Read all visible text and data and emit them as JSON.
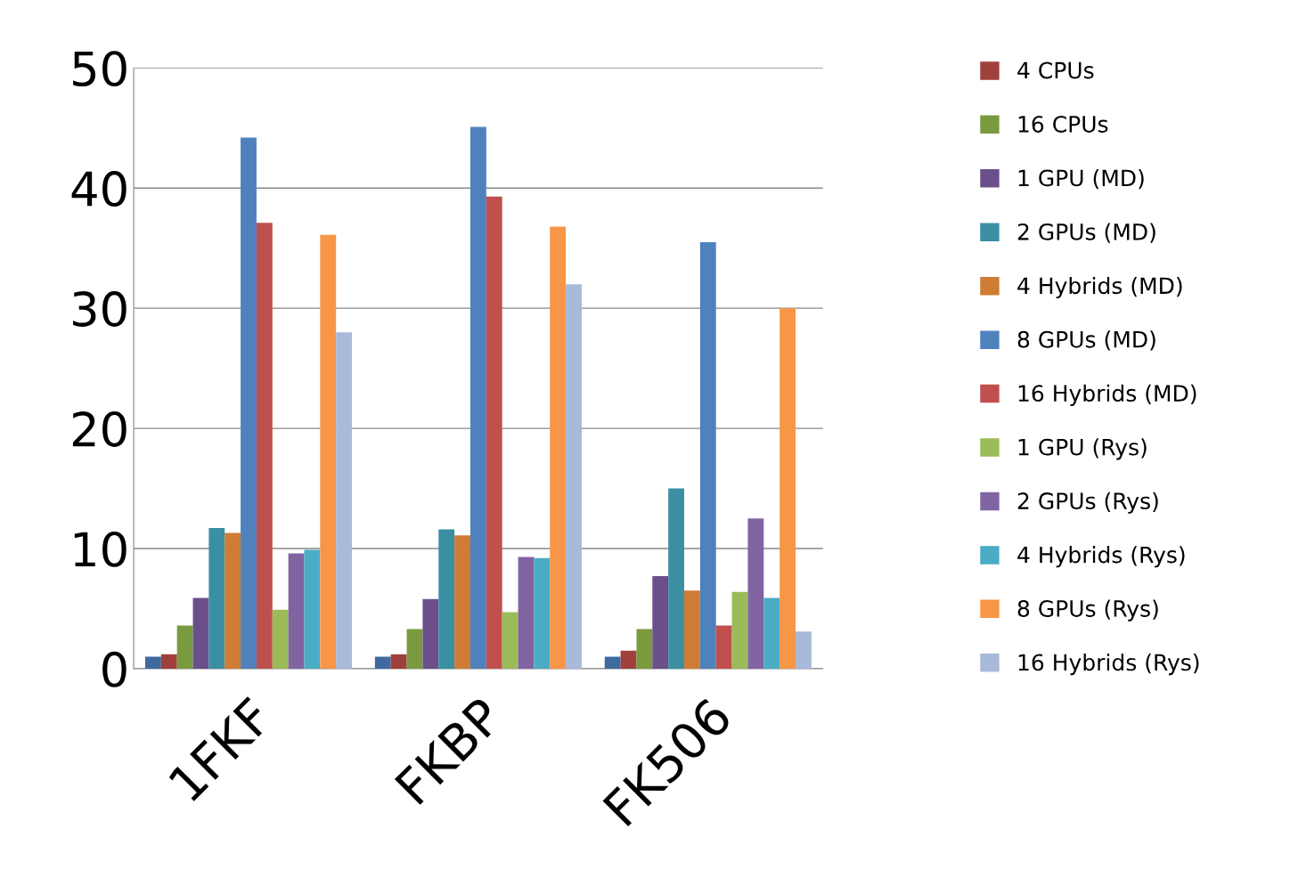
{
  "chart_data": {
    "type": "bar",
    "categories": [
      "1FKF",
      "FKBP",
      "FK506"
    ],
    "series": [
      {
        "color": "#3f6aa0",
        "values": [
          1.0,
          1.0,
          1.0
        ]
      },
      {
        "name": "4 CPUs",
        "color": "#a0403c",
        "values": [
          1.2,
          1.2,
          1.5
        ]
      },
      {
        "name": "16 CPUs",
        "color": "#7a9a3f",
        "values": [
          3.6,
          3.3,
          3.3
        ]
      },
      {
        "name": "1 GPU (MD)",
        "color": "#6a4f8a",
        "values": [
          5.9,
          5.8,
          7.7
        ]
      },
      {
        "name": "2 GPUs (MD)",
        "color": "#3a8fa3",
        "values": [
          11.7,
          11.6,
          15.0
        ]
      },
      {
        "name": "4 Hybrids (MD)",
        "color": "#cf7c34",
        "values": [
          11.3,
          11.1,
          6.5
        ]
      },
      {
        "name": "8 GPUs (MD)",
        "color": "#4f81bd",
        "values": [
          44.2,
          45.1,
          35.5
        ]
      },
      {
        "name": "16 Hybrids (MD)",
        "color": "#c0504d",
        "values": [
          37.1,
          39.3,
          3.6
        ]
      },
      {
        "name": "1 GPU (Rys)",
        "color": "#9bbb59",
        "values": [
          4.9,
          4.7,
          6.4
        ]
      },
      {
        "name": "2 GPUs (Rys)",
        "color": "#8064a2",
        "values": [
          9.6,
          9.3,
          12.5
        ]
      },
      {
        "name": "4 Hybrids (Rys)",
        "color": "#4bacc6",
        "values": [
          9.9,
          9.2,
          5.9
        ]
      },
      {
        "name": "8 GPUs (Rys)",
        "color": "#f79646",
        "values": [
          36.1,
          36.8,
          30.0
        ]
      },
      {
        "name": "16 Hybrids (Rys)",
        "color": "#a9b9d9",
        "values": [
          28.0,
          32.0,
          3.1
        ]
      }
    ],
    "ylim": [
      0,
      50
    ],
    "yticks": [
      0,
      10,
      20,
      30,
      40,
      50
    ],
    "grid": "y",
    "legend": "right"
  }
}
